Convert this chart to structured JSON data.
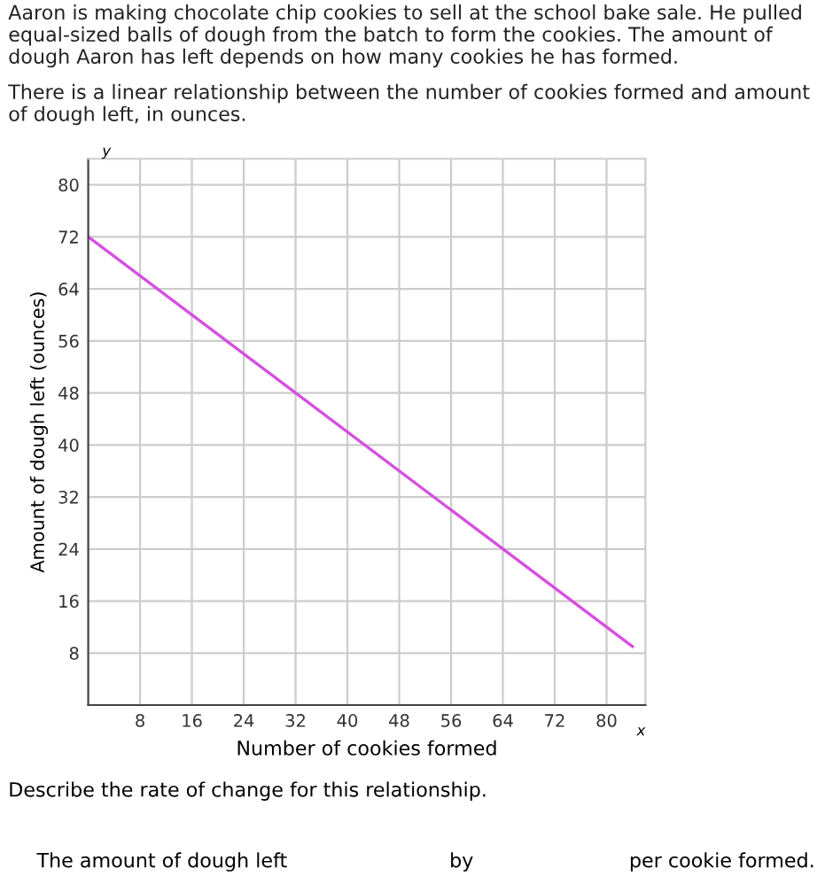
{
  "chart_data": {
    "type": "line",
    "title": "Aaron is making chocolate chip cookies to sell at the school bake sale. He pulled equal-sized balls of dough from the batch to form the cookies. The amount of dough Aaron has left depends on how many cookies he has formed.",
    "subtitle": "There is a linear relationship between the number of cookies formed and amount of dough left, in ounces.",
    "xlabel": "Number of cookies formed",
    "ylabel": "Amount of dough left (ounces)",
    "annotations": [
      "x",
      "y",
      "Describe the rate of change for this relationship.",
      "The amount of dough left",
      "by",
      "per cookie formed."
    ],
    "series": [
      {
        "color": "#d64fe0",
        "x": [
          0,
          84
        ],
        "values": [
          72,
          9
        ]
      }
    ],
    "xlim": [
      0,
      86
    ],
    "ylim": [
      0,
      84
    ],
    "xticks": [
      8,
      16,
      24,
      32,
      40,
      48,
      56,
      64,
      72,
      80
    ],
    "yticks": [
      8,
      16,
      24,
      32,
      40,
      48,
      56,
      64,
      72,
      80
    ],
    "grid": true,
    "legend": false,
    "marker": "none",
    "line_style": "solid"
  }
}
